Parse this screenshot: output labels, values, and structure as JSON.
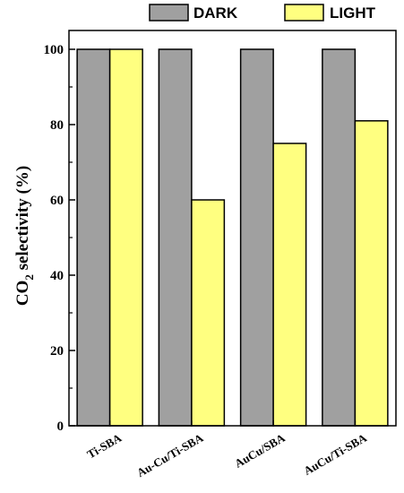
{
  "chart_data": {
    "type": "bar",
    "categories": [
      "Ti-SBA",
      "Au-Cu/Ti-SBA",
      "AuCu/SBA",
      "AuCu/Ti-SBA"
    ],
    "series": [
      {
        "name": "DARK",
        "values": [
          100,
          100,
          100,
          100
        ],
        "color": "#a0a0a0"
      },
      {
        "name": "LIGHT",
        "values": [
          100,
          60,
          75,
          81
        ],
        "color": "#ffff80"
      }
    ],
    "title": "",
    "xlabel": "",
    "ylabel": {
      "main": "CO",
      "subscript": "2",
      "rest": " selectivity (%)"
    },
    "ylim": [
      0,
      105
    ],
    "yticks": [
      0,
      20,
      40,
      60,
      80,
      100
    ],
    "legend_position": "top-right",
    "grid": false
  }
}
